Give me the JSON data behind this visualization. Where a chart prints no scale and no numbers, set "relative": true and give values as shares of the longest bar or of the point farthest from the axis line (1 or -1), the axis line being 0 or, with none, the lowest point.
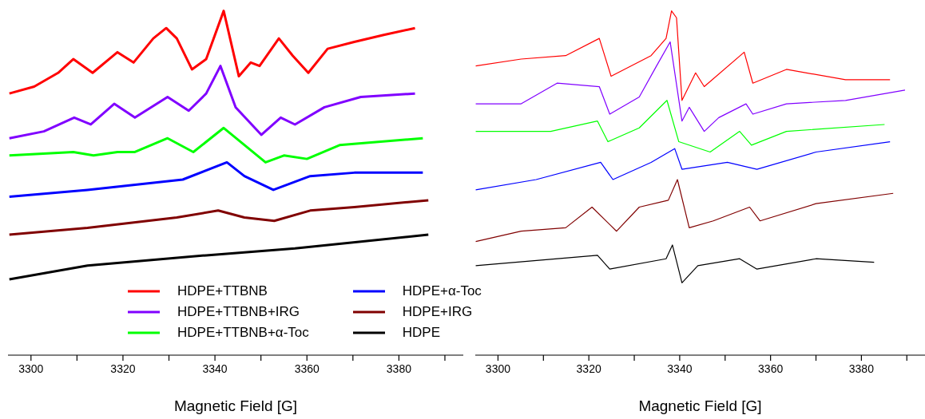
{
  "chart_data": [
    {
      "type": "line",
      "xlabel": "Magnetic Field [G]",
      "relative": true,
      "legend": "bottom",
      "xlim": [
        3295,
        3394
      ],
      "xticks": [
        3300,
        {
          "value": 3310,
          "label": null
        },
        3320,
        {
          "value": 3330,
          "label": null
        },
        3340,
        {
          "value": 3350,
          "label": null
        },
        3360,
        {
          "value": 3370,
          "label": null
        },
        3380,
        {
          "value": 3390,
          "label": null
        }
      ],
      "series": [
        {
          "name": "HDPE+TTBNB",
          "color": "#ff0000",
          "x": [
            3295.3,
            3300.7,
            3305.9,
            3309.2,
            3313.4,
            3318.8,
            3322.3,
            3326.6,
            3329.4,
            3331.7,
            3335,
            3338.1,
            3341.9,
            3345.2,
            3347.8,
            3349.7,
            3353.9,
            3356.9,
            3360.3,
            3364.5,
            3370.3,
            3376.7,
            3383.5
          ],
          "values": [
            0.76,
            0.78,
            0.82,
            0.86,
            0.82,
            0.88,
            0.85,
            0.92,
            0.95,
            0.92,
            0.83,
            0.86,
            1,
            0.81,
            0.85,
            0.84,
            0.92,
            0.87,
            0.82,
            0.89,
            0.91,
            0.93,
            0.95
          ]
        },
        {
          "name": "HDPE+TTBNB+IRG",
          "color": "#8000ff",
          "x": [
            3295.3,
            3302.8,
            3309.4,
            3313,
            3318.1,
            3322.6,
            3329.7,
            3334.3,
            3338.1,
            3341.2,
            3344.5,
            3350.1,
            3354.3,
            3357.4,
            3363.8,
            3371.7,
            3383.5
          ],
          "values": [
            0.63,
            0.65,
            0.69,
            0.67,
            0.73,
            0.69,
            0.75,
            0.71,
            0.76,
            0.84,
            0.72,
            0.64,
            0.69,
            0.67,
            0.72,
            0.75,
            0.76
          ]
        },
        {
          "name": "HDPE+TTBNB+α-Toc",
          "color": "#00ff00",
          "x": [
            3295.3,
            3309.2,
            3313.6,
            3318.8,
            3322.6,
            3329.7,
            3335.3,
            3341.9,
            3351,
            3355,
            3360,
            3367.1,
            3385.2
          ],
          "values": [
            0.58,
            0.59,
            0.58,
            0.59,
            0.59,
            0.63,
            0.59,
            0.66,
            0.56,
            0.58,
            0.57,
            0.61,
            0.63
          ]
        },
        {
          "name": "HDPE+α-Toc",
          "color": "#0000ff",
          "x": [
            3295.3,
            3312.3,
            3333,
            3342.6,
            3346.4,
            3352.7,
            3360.7,
            3370.3,
            3385.2
          ],
          "values": [
            0.46,
            0.48,
            0.51,
            0.56,
            0.52,
            0.48,
            0.52,
            0.53,
            0.53
          ]
        },
        {
          "name": "HDPE+IRG",
          "color": "#800000",
          "x": [
            3295.3,
            3312.3,
            3331.7,
            3340.7,
            3346.4,
            3352.9,
            3360.7,
            3370.3,
            3386.4
          ],
          "values": [
            0.35,
            0.37,
            0.4,
            0.42,
            0.4,
            0.39,
            0.42,
            0.43,
            0.45
          ]
        },
        {
          "name": "HDPE",
          "color": "#000000",
          "x": [
            3295.3,
            3312.3,
            3338.1,
            3357.4,
            3386.4
          ],
          "values": [
            0.22,
            0.26,
            0.29,
            0.31,
            0.35
          ]
        }
      ]
    },
    {
      "type": "line",
      "xlabel": "Magnetic Field [G]",
      "relative": true,
      "xlim": [
        3295,
        3394
      ],
      "xticks": [
        3300,
        {
          "value": 3310,
          "label": null
        },
        3320,
        {
          "value": 3330,
          "label": null
        },
        3340,
        {
          "value": 3350,
          "label": null
        },
        3360,
        {
          "value": 3370,
          "label": null
        },
        3380,
        {
          "value": 3390,
          "label": null
        }
      ],
      "series": [
        {
          "color": "#ff0000",
          "x": [
            3295.1,
            3305.1,
            3314.9,
            3322.3,
            3324.9,
            3333.7,
            3337,
            3338.2,
            3339.3,
            3340.5,
            3343.5,
            3345.4,
            3354.2,
            3356.1,
            3363.5,
            3376.5,
            3386.3
          ],
          "values": [
            0.84,
            0.86,
            0.87,
            0.92,
            0.81,
            0.87,
            0.92,
            1,
            0.98,
            0.74,
            0.82,
            0.78,
            0.88,
            0.79,
            0.83,
            0.8,
            0.8
          ]
        },
        {
          "color": "#8000ff",
          "x": [
            3295.1,
            3305.1,
            3313,
            3322.3,
            3324.6,
            3331.1,
            3334.9,
            3337.9,
            3340.5,
            3342.1,
            3345.4,
            3348.6,
            3354.6,
            3356.1,
            3363.5,
            3376.5,
            3389.6
          ],
          "values": [
            0.73,
            0.73,
            0.79,
            0.78,
            0.7,
            0.75,
            0.84,
            0.91,
            0.68,
            0.72,
            0.65,
            0.69,
            0.73,
            0.7,
            0.73,
            0.74,
            0.77
          ]
        },
        {
          "color": "#00ff00",
          "x": [
            3295.1,
            3311.6,
            3321.9,
            3324.2,
            3331.1,
            3337.2,
            3339.8,
            3346.7,
            3353.2,
            3355.8,
            3363.5,
            3385.1
          ],
          "values": [
            0.65,
            0.65,
            0.68,
            0.62,
            0.66,
            0.74,
            0.62,
            0.59,
            0.65,
            0.61,
            0.65,
            0.67
          ]
        },
        {
          "color": "#0000ff",
          "x": [
            3295.1,
            3308.4,
            3322.6,
            3325.3,
            3333.7,
            3338.9,
            3340.5,
            3350.5,
            3357,
            3370,
            3386.3
          ],
          "values": [
            0.48,
            0.51,
            0.56,
            0.51,
            0.56,
            0.6,
            0.54,
            0.56,
            0.54,
            0.59,
            0.62
          ]
        },
        {
          "color": "#800000",
          "x": [
            3295.1,
            3305.1,
            3314.9,
            3320.7,
            3326.1,
            3331.1,
            3337.5,
            3339.5,
            3342.1,
            3347.4,
            3355.4,
            3357.7,
            3370,
            3387
          ],
          "values": [
            0.33,
            0.36,
            0.37,
            0.43,
            0.36,
            0.43,
            0.45,
            0.51,
            0.37,
            0.39,
            0.43,
            0.39,
            0.44,
            0.47
          ]
        },
        {
          "color": "#000000",
          "x": [
            3295.1,
            3321.9,
            3324.6,
            3337,
            3338.4,
            3340.5,
            3344,
            3353.2,
            3357,
            3370,
            3382.8
          ],
          "values": [
            0.26,
            0.29,
            0.25,
            0.28,
            0.32,
            0.21,
            0.26,
            0.28,
            0.25,
            0.28,
            0.27
          ]
        }
      ]
    }
  ]
}
